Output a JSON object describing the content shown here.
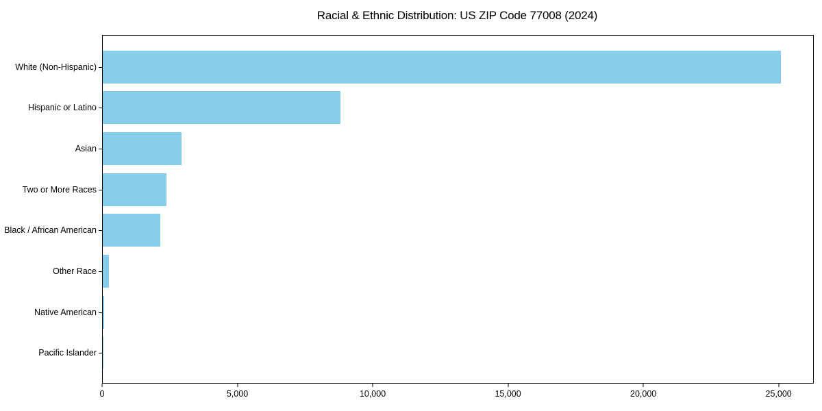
{
  "chart_data": {
    "type": "bar",
    "orientation": "horizontal",
    "title": "Racial & Ethnic Distribution: US ZIP Code 77008 (2024)",
    "categories": [
      "White (Non-Hispanic)",
      "Hispanic or Latino",
      "Asian",
      "Two or More Races",
      "Black / African American",
      "Other Race",
      "Native American",
      "Pacific Islander"
    ],
    "values": [
      25100,
      8800,
      2920,
      2360,
      2130,
      240,
      40,
      15
    ],
    "xlabel": "",
    "ylabel": "",
    "xlim": [
      0,
      26300
    ],
    "x_ticks": [
      0,
      5000,
      10000,
      15000,
      20000,
      25000
    ],
    "x_tick_labels": [
      "0",
      "5,000",
      "10,000",
      "15,000",
      "20,000",
      "25,000"
    ],
    "bar_color": "#87CEEB",
    "axis_color": "#000000",
    "background_color": "#ffffff",
    "grid": false,
    "legend": "none"
  }
}
